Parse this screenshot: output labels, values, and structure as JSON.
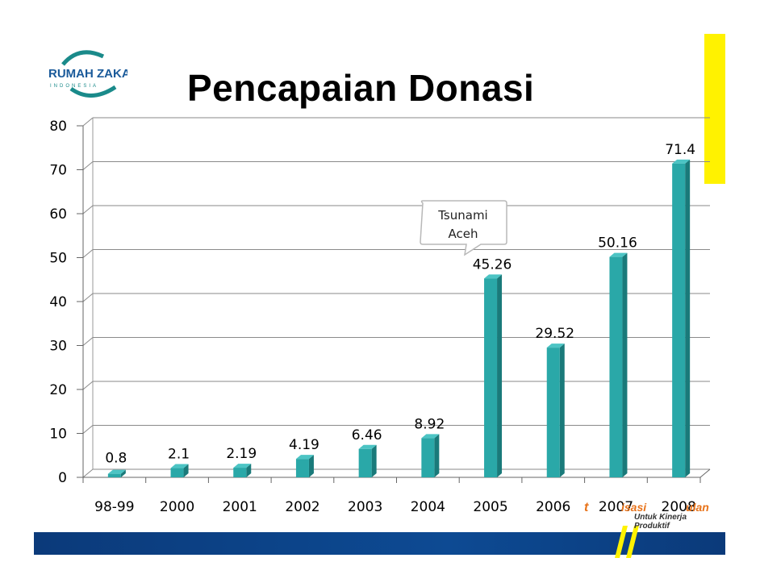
{
  "slide": {
    "title": "Pencapaian Donasi",
    "brand_color": "#fff200",
    "footer_color": "#0b3a7a"
  },
  "logo": {
    "name": "RUMAH ZAKAT",
    "sub": "INDONESIA",
    "color": "#1a8a8a"
  },
  "footer_logo": {
    "text": "isasi",
    "text2": "ulan",
    "slogan": "Untuk Kinerja Produktif",
    "accent": "#e8731a"
  },
  "callout": {
    "line1": "Tsunami",
    "line2": "Aceh"
  },
  "chart_data": {
    "type": "bar",
    "categories": [
      "98-99",
      "2000",
      "2001",
      "2002",
      "2003",
      "2004",
      "2005",
      "2006",
      "2007",
      "2008"
    ],
    "values": [
      0.8,
      2.1,
      2.19,
      4.19,
      6.46,
      8.92,
      45.26,
      29.52,
      50.16,
      71.4
    ],
    "data_labels": [
      "0.8",
      "2.1",
      "2.19",
      "4.19",
      "6.46",
      "8.92",
      "45.26",
      "29.52",
      "50.16",
      "71.4"
    ],
    "yticks": [
      "0",
      "10",
      "20",
      "30",
      "40",
      "50",
      "60",
      "70",
      "80"
    ],
    "ylim": [
      0,
      80
    ],
    "grid": true,
    "bar_color": "#2aa8a8",
    "bar_side_color": "#1a7a7a"
  }
}
